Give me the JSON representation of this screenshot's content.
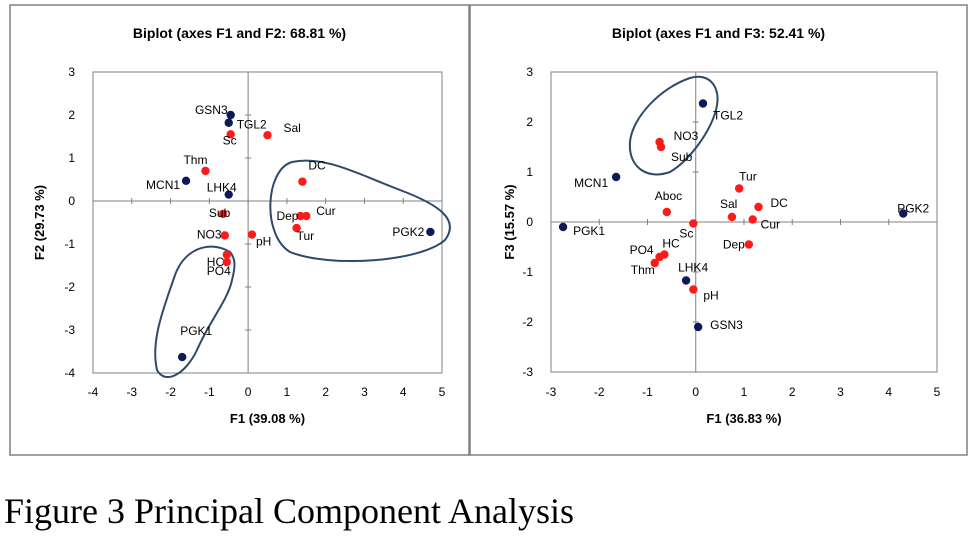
{
  "caption": "Figure 3 Principal Component Analysis",
  "colors": {
    "site": "#0d1a5a",
    "variable": "#ff1a1a",
    "hull": "#2e4a6b",
    "axis": "#808080",
    "frame": "#808080"
  },
  "chart_data": [
    {
      "type": "scatter",
      "title": "Biplot (axes F1 and F2: 68.81 %)",
      "xlabel": "F1 (39.08 %)",
      "ylabel": "F2 (29.73 %)",
      "xlim": [
        -4,
        5
      ],
      "ylim": [
        -4,
        3
      ],
      "xticks": [
        "-4",
        "-3",
        "-2",
        "-1",
        "0",
        "1",
        "2",
        "3",
        "4",
        "5"
      ],
      "yticks": [
        "-4",
        "-3",
        "-2",
        "-1",
        "0",
        "1",
        "2",
        "3"
      ],
      "series": [
        {
          "points": [
            {
              "label": "GSN3",
              "x": -0.45,
              "y": 2.0
            },
            {
              "label": "TGL2",
              "x": -0.5,
              "y": 1.82
            },
            {
              "label": "MCN1",
              "x": -1.6,
              "y": 0.47
            },
            {
              "label": "LHK4",
              "x": -0.5,
              "y": 0.15
            },
            {
              "label": "PGK2",
              "x": 4.7,
              "y": -0.72
            },
            {
              "label": "PGK1",
              "x": -1.7,
              "y": -3.63
            }
          ]
        },
        {
          "points": [
            {
              "label": "Sc",
              "x": -0.45,
              "y": 1.55
            },
            {
              "label": "Sal",
              "x": 0.5,
              "y": 1.53
            },
            {
              "label": "Thm",
              "x": -1.1,
              "y": 0.7
            },
            {
              "label": "DC",
              "x": 1.4,
              "y": 0.45
            },
            {
              "label": "Sub",
              "x": -0.65,
              "y": -0.3
            },
            {
              "label": "Dep",
              "x": 1.35,
              "y": -0.35
            },
            {
              "label": "Cur",
              "x": 1.5,
              "y": -0.35
            },
            {
              "label": "Tur",
              "x": 1.25,
              "y": -0.63
            },
            {
              "label": "NO3",
              "x": -0.6,
              "y": -0.8
            },
            {
              "label": "pH",
              "x": 0.1,
              "y": -0.78
            },
            {
              "label": "HC",
              "x": -0.55,
              "y": -1.25
            },
            {
              "label": "PO4",
              "x": -0.55,
              "y": -1.42
            }
          ]
        }
      ]
    },
    {
      "type": "scatter",
      "title": "Biplot (axes F1 and F3: 52.41 %)",
      "xlabel": "F1 (36.83 %)",
      "ylabel": "F3 (15.57 %)",
      "xlim": [
        -3,
        5
      ],
      "ylim": [
        -3,
        3
      ],
      "xticks": [
        "-3",
        "-2",
        "-1",
        "0",
        "1",
        "2",
        "3",
        "4",
        "5"
      ],
      "yticks": [
        "-3",
        "-2",
        "-1",
        "0",
        "1",
        "2",
        "3"
      ],
      "series": [
        {
          "points": [
            {
              "label": "TGL2",
              "x": 0.15,
              "y": 2.37
            },
            {
              "label": "MCN1",
              "x": -1.65,
              "y": 0.9
            },
            {
              "label": "PGK2",
              "x": 4.3,
              "y": 0.17
            },
            {
              "label": "PGK1",
              "x": -2.75,
              "y": -0.1
            },
            {
              "label": "LHK4",
              "x": -0.2,
              "y": -1.17
            },
            {
              "label": "GSN3",
              "x": 0.05,
              "y": -2.1
            }
          ]
        },
        {
          "points": [
            {
              "label": "NO3",
              "x": -0.75,
              "y": 1.6
            },
            {
              "label": "Sub",
              "x": -0.72,
              "y": 1.5
            },
            {
              "label": "Tur",
              "x": 0.9,
              "y": 0.67
            },
            {
              "label": "DC",
              "x": 1.3,
              "y": 0.3
            },
            {
              "label": "Aboc",
              "x": -0.6,
              "y": 0.2
            },
            {
              "label": "Sal",
              "x": 0.75,
              "y": 0.1
            },
            {
              "label": "Cur",
              "x": 1.18,
              "y": 0.05
            },
            {
              "label": "Sc",
              "x": -0.05,
              "y": -0.03
            },
            {
              "label": "Dep",
              "x": 1.1,
              "y": -0.45
            },
            {
              "label": "HC",
              "x": -0.65,
              "y": -0.65
            },
            {
              "label": "PO4",
              "x": -0.75,
              "y": -0.7
            },
            {
              "label": "Thm",
              "x": -0.85,
              "y": -0.82
            },
            {
              "label": "pH",
              "x": -0.05,
              "y": -1.35
            }
          ]
        }
      ]
    }
  ]
}
